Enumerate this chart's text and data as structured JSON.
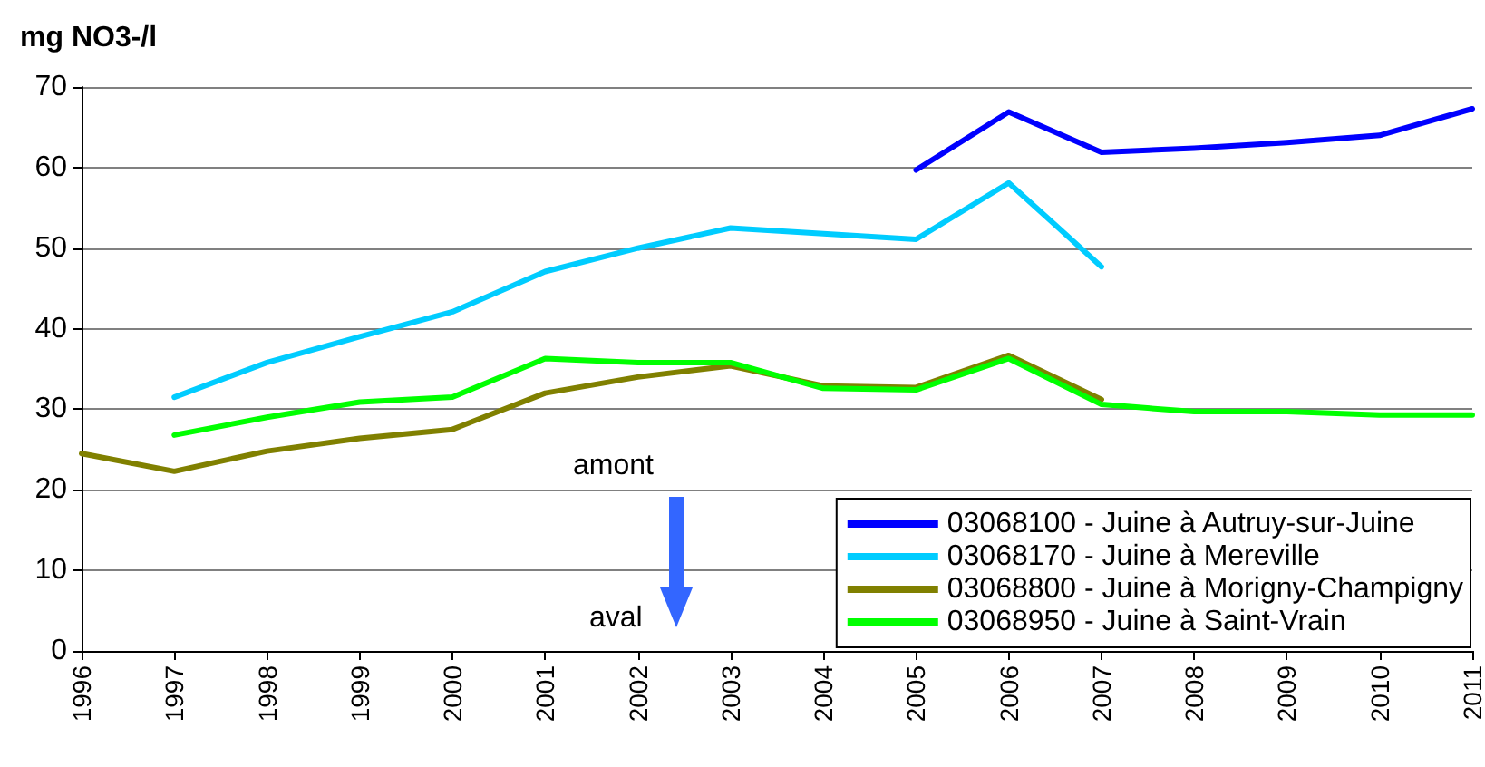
{
  "chart_data": {
    "type": "line",
    "ylabel": "mg NO3-/l",
    "categories": [
      "1996",
      "1997",
      "1998",
      "1999",
      "2000",
      "2001",
      "2002",
      "2003",
      "2004",
      "2005",
      "2006",
      "2007",
      "2008",
      "2009",
      "2010",
      "2011"
    ],
    "series": [
      {
        "name": "03068100 - Juine à Autruy-sur-Juine",
        "color": "#0000ff",
        "values": [
          null,
          null,
          null,
          null,
          null,
          null,
          null,
          null,
          null,
          59.7,
          66.9,
          61.9,
          62.4,
          63.1,
          64.0,
          67.3
        ]
      },
      {
        "name": "03068170 - Juine à Mereville",
        "color": "#00ccff",
        "values": [
          null,
          31.5,
          35.8,
          39.0,
          42.1,
          47.1,
          50.0,
          52.5,
          51.8,
          51.1,
          58.1,
          47.7,
          null,
          null,
          null,
          null
        ]
      },
      {
        "name": "03068800 - Juine à Morigny-Champigny",
        "color": "#808000",
        "values": [
          24.5,
          22.3,
          24.8,
          26.4,
          27.5,
          32.0,
          34.0,
          35.4,
          32.9,
          32.7,
          36.7,
          31.2,
          null,
          null,
          null,
          null
        ]
      },
      {
        "name": "03068950 - Juine à Saint-Vrain",
        "color": "#00ff00",
        "values": [
          null,
          26.8,
          29.0,
          30.9,
          31.5,
          36.3,
          35.8,
          35.8,
          32.6,
          32.4,
          36.3,
          30.6,
          29.7,
          29.7,
          29.3,
          29.3
        ]
      }
    ],
    "ylim": [
      0,
      70
    ],
    "yticks": [
      0,
      10,
      20,
      30,
      40,
      50,
      60,
      70
    ],
    "grid": "y",
    "legend": "bottom right",
    "marker": "none",
    "line_style": "solid",
    "annotations": [
      "amont",
      "aval"
    ]
  }
}
